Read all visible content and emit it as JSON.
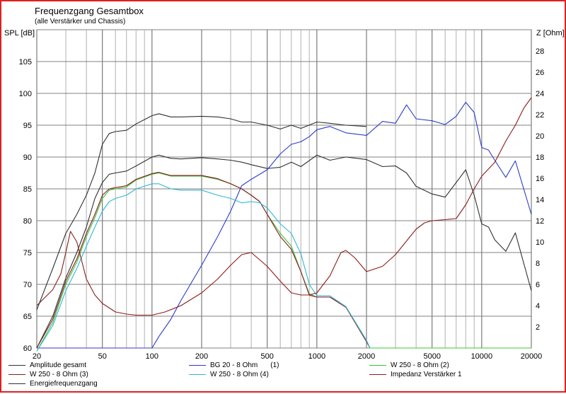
{
  "chart_data": {
    "type": "line",
    "title": "Frequenzgang Gesamtbox",
    "subtitle": "(alle Verstärker und Chassis)",
    "ylabel_left": "SPL [dB]",
    "ylabel_right": "Z [Ohm]",
    "x_scale": "log",
    "xlim": [
      20,
      20000
    ],
    "ylim_left": [
      60,
      110
    ],
    "ylim_right": [
      0,
      30
    ],
    "x_ticks": [
      20,
      50,
      100,
      200,
      500,
      1000,
      2000,
      5000,
      10000,
      20000
    ],
    "x_tick_labels": [
      "20",
      "50",
      "100",
      "200",
      "500",
      "1000",
      "2000",
      "5000",
      "10000",
      "20000"
    ],
    "y_left_ticks": [
      60,
      65,
      70,
      75,
      80,
      85,
      90,
      95,
      100,
      105
    ],
    "y_right_ticks": [
      2,
      4,
      6,
      8,
      10,
      12,
      14,
      16,
      18,
      20,
      22,
      24,
      26,
      28
    ],
    "grid": true,
    "series": [
      {
        "name": "Amplitude gesamt",
        "axis": "left",
        "color": "#303030",
        "x": [
          20,
          25,
          30,
          35,
          40,
          45,
          50,
          55,
          60,
          70,
          80,
          100,
          110,
          130,
          150,
          200,
          250,
          300,
          350,
          400,
          500,
          600,
          700,
          800,
          1000,
          1200,
          1500,
          2000,
          2500,
          3000,
          3500,
          4000,
          5000,
          6000,
          7000,
          8000,
          9000,
          10000,
          11000,
          12000,
          14000,
          16000,
          20000
        ],
        "y": [
          60,
          65,
          71,
          75,
          79,
          83.5,
          86,
          87.3,
          87.5,
          87.8,
          88.6,
          90,
          90.3,
          89.8,
          89.7,
          89.9,
          89.7,
          89.5,
          89.2,
          88.8,
          88.2,
          88.4,
          89.2,
          88.5,
          90.3,
          89.5,
          90,
          89.6,
          88.5,
          88.6,
          87.5,
          85.4,
          84.2,
          83.7,
          86,
          88,
          84,
          79.5,
          79,
          77,
          75.2,
          78.1,
          69
        ]
      },
      {
        "name": "BG 20 - 8 Ohm",
        "legend_number": "(1)",
        "axis": "left",
        "color": "#2c3cc8",
        "x": [
          20,
          90,
          100,
          110,
          130,
          150,
          200,
          250,
          300,
          350,
          400,
          500,
          600,
          700,
          800,
          900,
          1000,
          1200,
          1500,
          2000,
          2500,
          3000,
          3500,
          4000,
          5000,
          6000,
          7000,
          8000,
          9000,
          10000,
          11000,
          12000,
          14000,
          16000,
          20000
        ],
        "y": [
          60,
          60,
          60,
          61.8,
          64.5,
          67.5,
          73,
          77.5,
          81.5,
          85.5,
          86.5,
          88,
          90.5,
          92,
          92.4,
          93.2,
          94.3,
          94.8,
          93.8,
          93.4,
          95.6,
          95.3,
          98.2,
          96,
          95.7,
          95.1,
          96.4,
          98.6,
          97,
          91.5,
          91.1,
          89.5,
          86.8,
          89.4,
          81
        ]
      },
      {
        "name": "W 250 - 8 Ohm",
        "legend_number": "(2)",
        "axis": "left",
        "color": "#36c436",
        "x": [
          20,
          25,
          30,
          35,
          40,
          45,
          50,
          55,
          60,
          70,
          80,
          100,
          110,
          130,
          150,
          200,
          250,
          300,
          350,
          400,
          450,
          500,
          600,
          700,
          800,
          900,
          1000,
          1200,
          1500,
          2000,
          2100,
          20000
        ],
        "y": [
          59.5,
          64,
          70,
          73.5,
          77.5,
          80.5,
          83.5,
          84.8,
          85,
          85.3,
          86.4,
          87.3,
          87.5,
          87,
          87,
          87,
          86.5,
          85.8,
          85,
          84,
          83,
          81,
          78,
          76,
          72,
          68.5,
          68,
          68,
          66.5,
          61.2,
          60,
          60
        ]
      },
      {
        "name": "W 250 - 8 Ohm",
        "legend_number": "(3)",
        "axis": "left",
        "color": "#8b1c1c",
        "x": [
          20,
          25,
          30,
          35,
          40,
          45,
          50,
          55,
          60,
          70,
          80,
          100,
          110,
          130,
          150,
          200,
          250,
          300,
          350,
          400,
          450,
          500,
          600,
          700,
          800,
          900,
          1000,
          1200,
          1500,
          2000,
          2100
        ],
        "y": [
          60,
          64.5,
          70.5,
          74,
          78,
          81,
          84,
          85,
          85.2,
          85.5,
          86.5,
          87.4,
          87.6,
          87.1,
          87.1,
          87.1,
          86.6,
          85.8,
          85,
          84,
          83,
          81,
          77.5,
          75.5,
          72,
          68.3,
          68,
          68,
          66.4,
          61,
          60
        ]
      },
      {
        "name": "W 250 - 8 Ohm",
        "legend_number": "(4)",
        "axis": "left",
        "color": "#30b8d8",
        "x": [
          20,
          25,
          30,
          35,
          40,
          45,
          50,
          55,
          60,
          70,
          80,
          100,
          110,
          130,
          150,
          200,
          250,
          300,
          350,
          400,
          450,
          500,
          600,
          700,
          800,
          900,
          1000,
          1200,
          1500,
          2000,
          2100
        ],
        "y": [
          59.5,
          63.5,
          69,
          72.5,
          76,
          79,
          81.5,
          83,
          83.5,
          84,
          85,
          85.8,
          85.8,
          85,
          84.8,
          84.8,
          84,
          83.5,
          82.8,
          83,
          82.8,
          82,
          79.5,
          78,
          74.8,
          70,
          68.2,
          68.2,
          66.5,
          61.2,
          60
        ]
      },
      {
        "name": "Impedanz Verstärker 1",
        "axis": "right",
        "color": "#8b1c1c",
        "x": [
          20,
          25,
          28,
          30,
          32,
          35,
          40,
          45,
          50,
          60,
          70,
          80,
          100,
          120,
          150,
          200,
          250,
          300,
          350,
          400,
          500,
          600,
          700,
          800,
          900,
          1000,
          1200,
          1400,
          1500,
          1700,
          2000,
          2500,
          3000,
          4000,
          4500,
          5000,
          6000,
          7000,
          8000,
          9000,
          10000,
          12000,
          14000,
          16000,
          18000,
          20000
        ],
        "y": [
          4,
          5.5,
          7,
          9,
          11,
          10,
          6.5,
          5,
          4.2,
          3.4,
          3.2,
          3.1,
          3.1,
          3.4,
          4,
          5.2,
          6.5,
          7.8,
          8.8,
          9,
          7.7,
          6.3,
          5.2,
          5,
          5,
          5.2,
          6.8,
          9,
          9.2,
          8.5,
          7.2,
          7.7,
          8.8,
          11.2,
          11.8,
          12,
          12.1,
          12.2,
          13.5,
          15,
          16.2,
          17.5,
          19.5,
          21,
          22.6,
          23.6
        ]
      },
      {
        "name": "Energiefrequenzgang",
        "axis": "left",
        "color": "#303030",
        "x": [
          20,
          25,
          30,
          35,
          40,
          45,
          50,
          55,
          60,
          70,
          80,
          100,
          110,
          130,
          150,
          200,
          250,
          300,
          350,
          400,
          500,
          600,
          700,
          800,
          1000,
          1200,
          1500,
          2000
        ],
        "y": [
          66,
          72.5,
          78,
          81,
          84,
          87.5,
          92,
          93.7,
          94,
          94.2,
          95.2,
          96.5,
          96.8,
          96.3,
          96.3,
          96.4,
          96.3,
          96,
          95.5,
          95.5,
          95,
          94.4,
          95,
          94.5,
          95.5,
          95.3,
          95,
          94.8
        ]
      }
    ]
  },
  "legend": [
    {
      "label": "Amplitude gesamt",
      "number": "",
      "color": "#303030"
    },
    {
      "label": "BG 20 - 8 Ohm",
      "number": "(1)",
      "color": "#2c3cc8"
    },
    {
      "label": "W 250 - 8 Ohm (2)",
      "number": "",
      "color": "#36c436"
    },
    {
      "label": "W 250 - 8 Ohm (3)",
      "number": "",
      "color": "#8b1c1c"
    },
    {
      "label": "W 250 - 8 Ohm (4)",
      "number": "",
      "color": "#30b8d8"
    },
    {
      "label": "Impedanz Verstärker 1",
      "number": "",
      "color": "#8b1c1c"
    },
    {
      "label": "Energiefrequenzgang",
      "number": "",
      "color": "#303030"
    }
  ]
}
